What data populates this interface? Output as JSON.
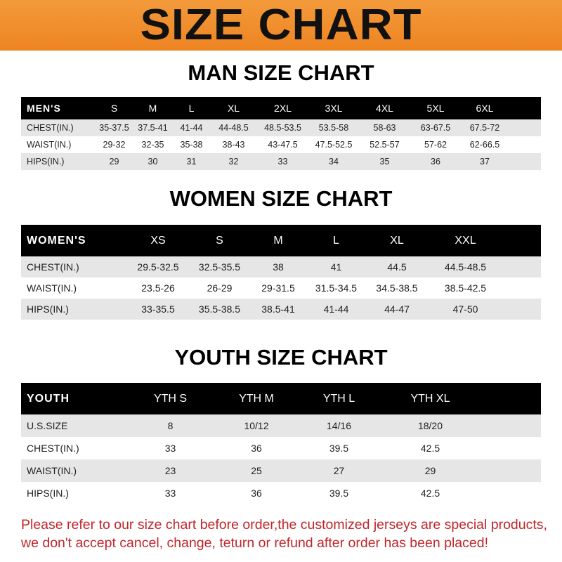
{
  "banner": {
    "title": "SIZE CHART",
    "color": "#f08a24"
  },
  "men": {
    "title": "MAN SIZE CHART",
    "header": "MEN'S",
    "sizes": [
      "S",
      "M",
      "L",
      "XL",
      "2XL",
      "3XL",
      "4XL",
      "5XL",
      "6XL"
    ],
    "rows": [
      {
        "label": "CHEST(IN.)",
        "values": [
          "35-37.5",
          "37.5-41",
          "41-44",
          "44-48.5",
          "48.5-53.5",
          "53.5-58",
          "58-63",
          "63-67.5",
          "67.5-72"
        ]
      },
      {
        "label": "WAIST(IN.)",
        "values": [
          "29-32",
          "32-35",
          "35-38",
          "38-43",
          "43-47.5",
          "47.5-52.5",
          "52.5-57",
          "57-62",
          "62-66.5"
        ]
      },
      {
        "label": "HIPS(IN.)",
        "values": [
          "29",
          "30",
          "31",
          "32",
          "33",
          "34",
          "35",
          "36",
          "37"
        ]
      }
    ]
  },
  "women": {
    "title": "WOMEN SIZE CHART",
    "header": "WOMEN'S",
    "sizes": [
      "XS",
      "S",
      "M",
      "L",
      "XL",
      "XXL"
    ],
    "rows": [
      {
        "label": "CHEST(IN.)",
        "values": [
          "29.5-32.5",
          "32.5-35.5",
          "38",
          "41",
          "44.5",
          "44.5-48.5"
        ]
      },
      {
        "label": "WAIST(IN.)",
        "values": [
          "23.5-26",
          "26-29",
          "29-31.5",
          "31.5-34.5",
          "34.5-38.5",
          "38.5-42.5"
        ]
      },
      {
        "label": "HIPS(IN.)",
        "values": [
          "33-35.5",
          "35.5-38.5",
          "38.5-41",
          "41-44",
          "44-47",
          "47-50"
        ]
      }
    ]
  },
  "youth": {
    "title": "YOUTH SIZE CHART",
    "header": "YOUTH",
    "sizes": [
      "YTH S",
      "YTH M",
      "YTH L",
      "YTH XL"
    ],
    "rows": [
      {
        "label": "U.S.SIZE",
        "values": [
          "8",
          "10/12",
          "14/16",
          "18/20"
        ]
      },
      {
        "label": "CHEST(IN.)",
        "values": [
          "33",
          "36",
          "39.5",
          "42.5"
        ]
      },
      {
        "label": "WAIST(IN.)",
        "values": [
          "23",
          "25",
          "27",
          "29"
        ]
      },
      {
        "label": "HIPS(IN.)",
        "values": [
          "33",
          "36",
          "39.5",
          "42.5"
        ]
      }
    ]
  },
  "note": "Please refer to our size chart before order,the customized jerseys are special products, we don't accept cancel, change, teturn or refund after order has been placed!",
  "note_color": "#c0262a"
}
